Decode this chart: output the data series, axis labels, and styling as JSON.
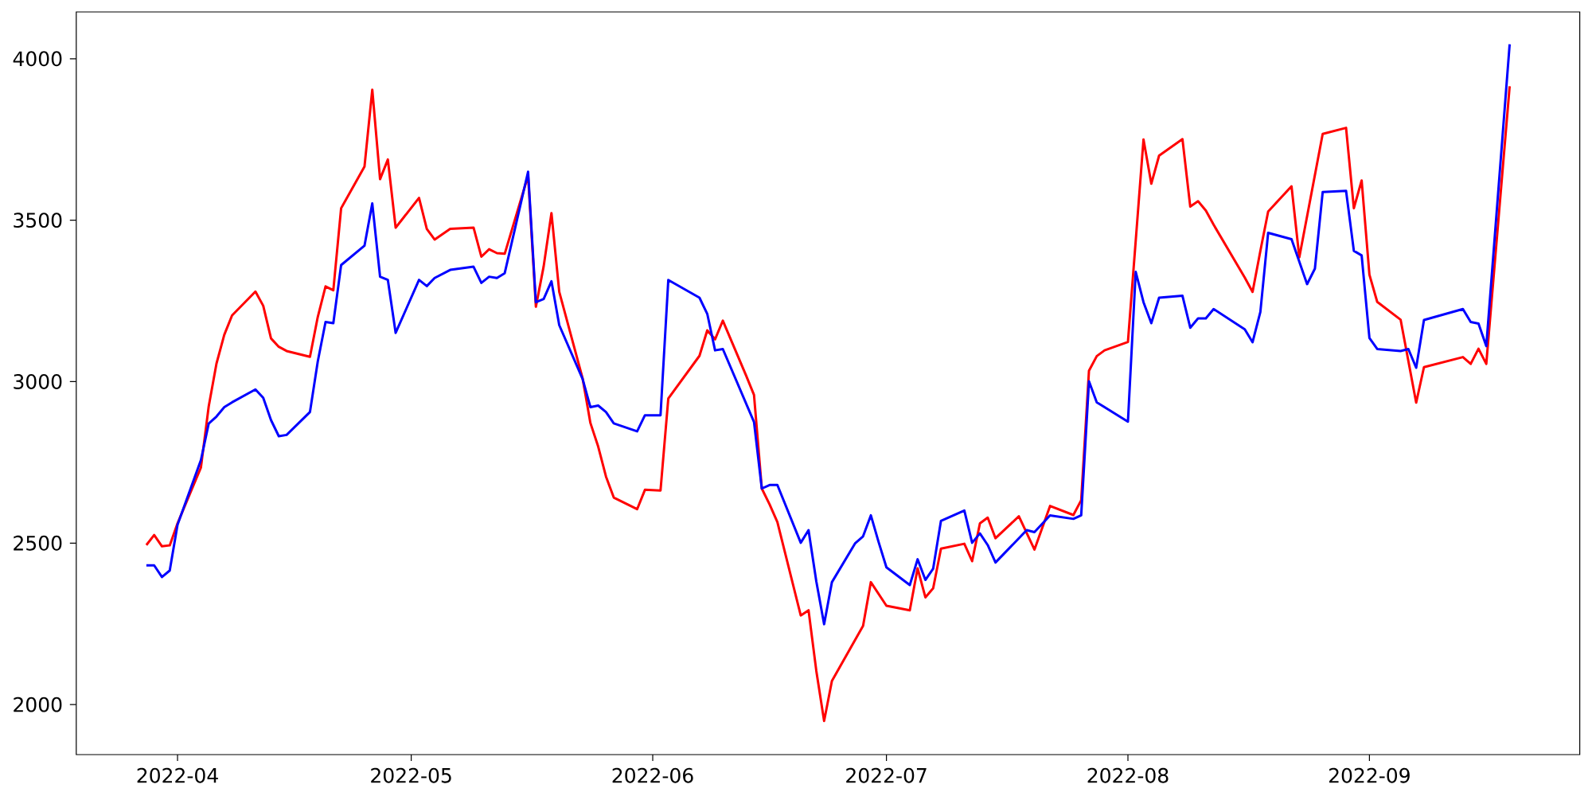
{
  "chart_data": {
    "type": "line",
    "xlim": [
      "2022-03-19",
      "2022-09-28"
    ],
    "ylim": [
      1845,
      4145
    ],
    "xticks": [
      "2022-04",
      "2022-05",
      "2022-06",
      "2022-07",
      "2022-08",
      "2022-09"
    ],
    "yticks": [
      2000,
      2500,
      3000,
      3500,
      4000
    ],
    "series": [
      {
        "color": "#ff0000",
        "x": [
          "2022-03-28",
          "2022-03-29",
          "2022-03-30",
          "2022-03-31",
          "2022-04-01",
          "2022-04-04",
          "2022-04-05",
          "2022-04-06",
          "2022-04-07",
          "2022-04-08",
          "2022-04-11",
          "2022-04-12",
          "2022-04-13",
          "2022-04-14",
          "2022-04-15",
          "2022-04-18",
          "2022-04-19",
          "2022-04-20",
          "2022-04-21",
          "2022-04-22",
          "2022-04-25",
          "2022-04-26",
          "2022-04-27",
          "2022-04-28",
          "2022-04-29",
          "2022-05-02",
          "2022-05-03",
          "2022-05-04",
          "2022-05-06",
          "2022-05-09",
          "2022-05-10",
          "2022-05-11",
          "2022-05-12",
          "2022-05-13",
          "2022-05-16",
          "2022-05-17",
          "2022-05-18",
          "2022-05-19",
          "2022-05-20",
          "2022-05-23",
          "2022-05-24",
          "2022-05-25",
          "2022-05-26",
          "2022-05-27",
          "2022-05-30",
          "2022-05-31",
          "2022-06-02",
          "2022-06-03",
          "2022-06-07",
          "2022-06-08",
          "2022-06-09",
          "2022-06-10",
          "2022-06-13",
          "2022-06-14",
          "2022-06-15",
          "2022-06-16",
          "2022-06-17",
          "2022-06-20",
          "2022-06-21",
          "2022-06-22",
          "2022-06-23",
          "2022-06-24",
          "2022-06-28",
          "2022-06-29",
          "2022-07-01",
          "2022-07-04",
          "2022-07-05",
          "2022-07-06",
          "2022-07-07",
          "2022-07-08",
          "2022-07-11",
          "2022-07-12",
          "2022-07-13",
          "2022-07-14",
          "2022-07-15",
          "2022-07-18",
          "2022-07-20",
          "2022-07-22",
          "2022-07-25",
          "2022-07-26",
          "2022-07-27",
          "2022-07-28",
          "2022-07-29",
          "2022-08-01",
          "2022-08-03",
          "2022-08-04",
          "2022-08-05",
          "2022-08-08",
          "2022-08-09",
          "2022-08-10",
          "2022-08-11",
          "2022-08-12",
          "2022-08-16",
          "2022-08-17",
          "2022-08-18",
          "2022-08-19",
          "2022-08-22",
          "2022-08-23",
          "2022-08-26",
          "2022-08-29",
          "2022-08-30",
          "2022-08-31",
          "2022-09-01",
          "2022-09-02",
          "2022-09-05",
          "2022-09-07",
          "2022-09-08",
          "2022-09-13",
          "2022-09-14",
          "2022-09-15",
          "2022-09-16",
          "2022-09-19"
        ],
        "values": [
          2494,
          2525,
          2490,
          2493,
          2561,
          2734,
          2923,
          3056,
          3145,
          3205,
          3279,
          3235,
          3134,
          3108,
          3095,
          3077,
          3200,
          3295,
          3283,
          3537,
          3666,
          3904,
          3627,
          3688,
          3477,
          3569,
          3473,
          3440,
          3473,
          3477,
          3387,
          3410,
          3398,
          3396,
          3638,
          3232,
          3357,
          3522,
          3278,
          3010,
          2872,
          2799,
          2706,
          2641,
          2605,
          2665,
          2663,
          2948,
          3080,
          3159,
          3131,
          3189,
          3018,
          2959,
          2669,
          2620,
          2565,
          2276,
          2292,
          2104,
          1949,
          2073,
          2244,
          2379,
          2306,
          2292,
          2422,
          2332,
          2360,
          2483,
          2498,
          2444,
          2561,
          2579,
          2515,
          2583,
          2480,
          2615,
          2587,
          2633,
          3034,
          3079,
          3097,
          3123,
          3750,
          3613,
          3700,
          3751,
          3542,
          3559,
          3530,
          3486,
          3322,
          3278,
          3405,
          3527,
          3605,
          3385,
          3767,
          3786,
          3537,
          3623,
          3331,
          3247,
          3192,
          2935,
          3045,
          3076,
          3055,
          3102,
          3055,
          3915
        ]
      },
      {
        "color": "#0000ff",
        "x": [
          "2022-03-28",
          "2022-03-29",
          "2022-03-30",
          "2022-03-31",
          "2022-04-01",
          "2022-04-04",
          "2022-04-05",
          "2022-04-06",
          "2022-04-07",
          "2022-04-08",
          "2022-04-11",
          "2022-04-12",
          "2022-04-13",
          "2022-04-14",
          "2022-04-15",
          "2022-04-18",
          "2022-04-19",
          "2022-04-20",
          "2022-04-21",
          "2022-04-22",
          "2022-04-25",
          "2022-04-26",
          "2022-04-27",
          "2022-04-28",
          "2022-04-29",
          "2022-05-02",
          "2022-05-03",
          "2022-05-04",
          "2022-05-06",
          "2022-05-09",
          "2022-05-10",
          "2022-05-11",
          "2022-05-12",
          "2022-05-13",
          "2022-05-16",
          "2022-05-17",
          "2022-05-18",
          "2022-05-19",
          "2022-05-20",
          "2022-05-23",
          "2022-05-24",
          "2022-05-25",
          "2022-05-26",
          "2022-05-27",
          "2022-05-30",
          "2022-05-31",
          "2022-06-02",
          "2022-06-03",
          "2022-06-07",
          "2022-06-08",
          "2022-06-09",
          "2022-06-10",
          "2022-06-14",
          "2022-06-15",
          "2022-06-16",
          "2022-06-17",
          "2022-06-20",
          "2022-06-21",
          "2022-06-22",
          "2022-06-23",
          "2022-06-24",
          "2022-06-27",
          "2022-06-28",
          "2022-06-29",
          "2022-06-30",
          "2022-07-01",
          "2022-07-04",
          "2022-07-05",
          "2022-07-06",
          "2022-07-07",
          "2022-07-08",
          "2022-07-11",
          "2022-07-12",
          "2022-07-13",
          "2022-07-14",
          "2022-07-15",
          "2022-07-19",
          "2022-07-20",
          "2022-07-22",
          "2022-07-25",
          "2022-07-26",
          "2022-07-27",
          "2022-07-28",
          "2022-08-01",
          "2022-08-02",
          "2022-08-03",
          "2022-08-04",
          "2022-08-05",
          "2022-08-08",
          "2022-08-09",
          "2022-08-10",
          "2022-08-11",
          "2022-08-12",
          "2022-08-16",
          "2022-08-17",
          "2022-08-18",
          "2022-08-19",
          "2022-08-22",
          "2022-08-24",
          "2022-08-25",
          "2022-08-26",
          "2022-08-29",
          "2022-08-30",
          "2022-08-31",
          "2022-09-01",
          "2022-09-02",
          "2022-09-05",
          "2022-09-06",
          "2022-09-07",
          "2022-09-08",
          "2022-09-13",
          "2022-09-14",
          "2022-09-15",
          "2022-09-16",
          "2022-09-19"
        ],
        "values": [
          2431,
          2431,
          2395,
          2415,
          2557,
          2757,
          2870,
          2892,
          2921,
          2936,
          2976,
          2950,
          2881,
          2831,
          2835,
          2906,
          3062,
          3185,
          3181,
          3361,
          3421,
          3552,
          3325,
          3315,
          3151,
          3315,
          3296,
          3321,
          3346,
          3356,
          3306,
          3325,
          3321,
          3336,
          3650,
          3246,
          3256,
          3311,
          3175,
          3008,
          2921,
          2926,
          2906,
          2871,
          2846,
          2896,
          2896,
          3315,
          3260,
          3210,
          3097,
          3101,
          2875,
          2669,
          2680,
          2680,
          2501,
          2540,
          2381,
          2249,
          2379,
          2500,
          2521,
          2586,
          2503,
          2425,
          2370,
          2450,
          2386,
          2421,
          2569,
          2601,
          2501,
          2530,
          2494,
          2440,
          2540,
          2534,
          2586,
          2575,
          2586,
          3001,
          2936,
          2876,
          3340,
          3246,
          3181,
          3260,
          3266,
          3167,
          3196,
          3196,
          3225,
          3162,
          3122,
          3216,
          3461,
          3441,
          3302,
          3350,
          3587,
          3591,
          3405,
          3391,
          3135,
          3101,
          3095,
          3101,
          3043,
          3191,
          3225,
          3185,
          3180,
          3110,
          4045
        ]
      }
    ]
  }
}
